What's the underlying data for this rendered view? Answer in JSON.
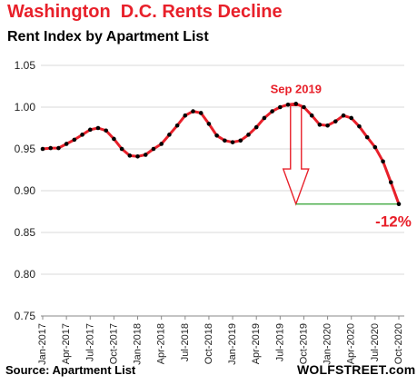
{
  "header": {
    "title": "Washington  D.C. Rents Decline",
    "subtitle": "Rent Index by Apartment List"
  },
  "footer": {
    "source": "Source: Apartment List",
    "brand": "WOLFSTREET.com"
  },
  "colors": {
    "line": "#e8202a",
    "marker": "#000000",
    "annotation": "#e8202a",
    "reference_line": "#2ea02e",
    "grid": "#d9d9d9"
  },
  "chart_data": {
    "type": "line",
    "title": "Washington  D.C. Rents Decline",
    "subtitle": "Rent Index by Apartment List",
    "xlabel": "",
    "ylabel": "",
    "ylim": [
      0.75,
      1.05
    ],
    "yticks": [
      "0.75",
      "0.80",
      "0.85",
      "0.90",
      "0.95",
      "1.00",
      "1.05"
    ],
    "grid": "horizontal",
    "x_tick_labels": [
      "Jan-2017",
      "Apr-2017",
      "Jul-2017",
      "Oct-2017",
      "Jan-2018",
      "Apr-2018",
      "Jul-2018",
      "Oct-2018",
      "Jan-2019",
      "Apr-2019",
      "Jul-2019",
      "Oct-2019",
      "Jan-2020",
      "Apr-2020",
      "Jul-2020",
      "Oct-2020"
    ],
    "x": [
      "2017-01",
      "2017-02",
      "2017-03",
      "2017-04",
      "2017-05",
      "2017-06",
      "2017-07",
      "2017-08",
      "2017-09",
      "2017-10",
      "2017-11",
      "2017-12",
      "2018-01",
      "2018-02",
      "2018-03",
      "2018-04",
      "2018-05",
      "2018-06",
      "2018-07",
      "2018-08",
      "2018-09",
      "2018-10",
      "2018-11",
      "2018-12",
      "2019-01",
      "2019-02",
      "2019-03",
      "2019-04",
      "2019-05",
      "2019-06",
      "2019-07",
      "2019-08",
      "2019-09",
      "2019-10",
      "2019-11",
      "2019-12",
      "2020-01",
      "2020-02",
      "2020-03",
      "2020-04",
      "2020-05",
      "2020-06",
      "2020-07",
      "2020-08",
      "2020-09",
      "2020-10"
    ],
    "series": [
      {
        "values": [
          0.95,
          0.951,
          0.951,
          0.956,
          0.961,
          0.967,
          0.973,
          0.975,
          0.972,
          0.962,
          0.95,
          0.942,
          0.941,
          0.943,
          0.95,
          0.956,
          0.967,
          0.978,
          0.99,
          0.995,
          0.993,
          0.98,
          0.966,
          0.96,
          0.958,
          0.96,
          0.967,
          0.976,
          0.987,
          0.995,
          1.0,
          1.003,
          1.004,
          1.0,
          0.99,
          0.979,
          0.978,
          0.983,
          0.99,
          0.987,
          0.977,
          0.964,
          0.952,
          0.935,
          0.91,
          0.884
        ]
      }
    ],
    "annotations": [
      {
        "text": "Sep 2019",
        "x": "2019-09",
        "y": 1.004
      },
      {
        "text": "-12%",
        "x": "2020-10",
        "y": 0.884
      }
    ]
  }
}
